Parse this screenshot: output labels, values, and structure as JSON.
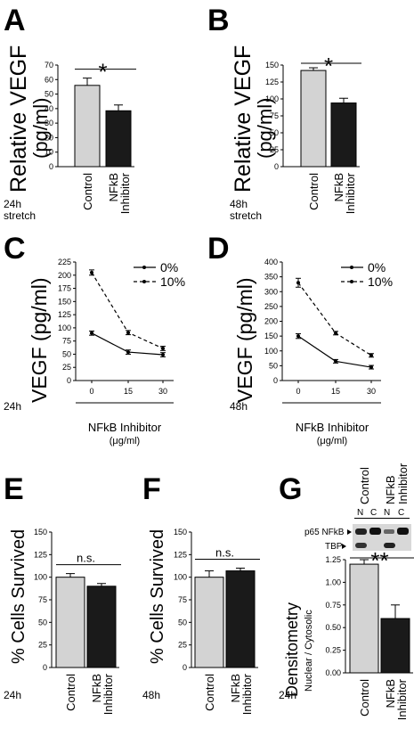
{
  "panels": {
    "A": {
      "letter": "A",
      "ylabel": "Relative VEGF",
      "ylabel2": "(pg/ml)",
      "note1": "24h",
      "note2": "stretch",
      "sig": "*"
    },
    "B": {
      "letter": "B",
      "ylabel": "Relative VEGF",
      "ylabel2": "(pg/ml)",
      "note1": "48h",
      "note2": "stretch",
      "sig": "*"
    },
    "C": {
      "letter": "C",
      "ylabel": "VEGF (pg/ml)",
      "note1": "24h",
      "xlabel": "NFkB Inhibitor",
      "xunit": "(μg/ml)"
    },
    "D": {
      "letter": "D",
      "ylabel": "VEGF (pg/ml)",
      "note1": "48h",
      "xlabel": "NFkB Inhibitor",
      "xunit": "(μg/ml)"
    },
    "E": {
      "letter": "E",
      "ylabel": "% Cells Survived",
      "note1": "24h",
      "sig": "n.s."
    },
    "F": {
      "letter": "F",
      "ylabel": "% Cells Survived",
      "note1": "48h",
      "sig": "n.s."
    },
    "G": {
      "letter": "G",
      "ylabel": "Densitometry",
      "ylabel_sub": "Nuclear / Cytosolic",
      "note1": "24h",
      "sig": "**",
      "blot_col1": "Control",
      "blot_col2a": "NFkB",
      "blot_col2b": "Inhibitor",
      "lane_n1": "N",
      "lane_c1": "C",
      "lane_n2": "N",
      "lane_c2": "C",
      "row1": "p65 NFkB",
      "row2": "TBP"
    }
  },
  "labels": {
    "control": "Control",
    "nfkb1": "NFkB",
    "nfkb2": "Inhibitor"
  },
  "colors": {
    "control": "#d3d3d3",
    "inhibitor": "#1a1a1a"
  },
  "chart_data": [
    {
      "id": "A",
      "type": "bar",
      "categories": [
        "Control",
        "NFkB Inhibitor"
      ],
      "values": [
        56,
        38.5
      ],
      "errors": [
        5,
        4
      ],
      "ylim": [
        0,
        70
      ],
      "yticks": [
        0,
        10,
        20,
        30,
        40,
        50,
        60,
        70
      ],
      "ylabel": "Relative VEGF (pg/ml)",
      "significance": "*"
    },
    {
      "id": "B",
      "type": "bar",
      "categories": [
        "Control",
        "NFkB Inhibitor"
      ],
      "values": [
        142,
        94
      ],
      "errors": [
        4,
        7
      ],
      "ylim": [
        0,
        150
      ],
      "yticks": [
        0,
        25,
        50,
        75,
        100,
        125,
        150
      ],
      "ylabel": "Relative VEGF (pg/ml)",
      "significance": "*"
    },
    {
      "id": "C",
      "type": "line",
      "x": [
        0,
        15,
        30
      ],
      "xticks": [
        "0",
        "15",
        "30"
      ],
      "ylim": [
        0,
        225
      ],
      "yticks": [
        0,
        25,
        50,
        75,
        100,
        125,
        150,
        175,
        200,
        225
      ],
      "ylabel": "VEGF (pg/ml)",
      "xlabel": "NFkB Inhibitor (μg/ml)",
      "series": [
        {
          "name": "0%",
          "style": "solid",
          "values": [
            90,
            54,
            49
          ],
          "errors": [
            4,
            4,
            4
          ]
        },
        {
          "name": "10%",
          "style": "dashed",
          "values": [
            205,
            91,
            61
          ],
          "errors": [
            5,
            4,
            4
          ]
        }
      ]
    },
    {
      "id": "D",
      "type": "line",
      "x": [
        0,
        15,
        30
      ],
      "xticks": [
        "0",
        "15",
        "30"
      ],
      "ylim": [
        0,
        400
      ],
      "yticks": [
        0,
        50,
        100,
        150,
        200,
        250,
        300,
        350,
        400
      ],
      "ylabel": "VEGF (pg/ml)",
      "xlabel": "NFkB Inhibitor (μg/ml)",
      "series": [
        {
          "name": "0%",
          "style": "solid",
          "values": [
            150,
            65,
            45
          ],
          "errors": [
            8,
            6,
            6
          ]
        },
        {
          "name": "10%",
          "style": "dashed",
          "values": [
            330,
            160,
            85
          ],
          "errors": [
            15,
            6,
            6
          ]
        }
      ]
    },
    {
      "id": "E",
      "type": "bar",
      "categories": [
        "Control",
        "NFkB Inhibitor"
      ],
      "values": [
        100,
        90
      ],
      "errors": [
        4,
        3
      ],
      "ylim": [
        0,
        150
      ],
      "yticks": [
        0,
        25,
        50,
        75,
        100,
        125,
        150
      ],
      "ylabel": "% Cells Survived",
      "significance": "n.s."
    },
    {
      "id": "F",
      "type": "bar",
      "categories": [
        "Control",
        "NFkB Inhibitor"
      ],
      "values": [
        100,
        107
      ],
      "errors": [
        7,
        3
      ],
      "ylim": [
        0,
        150
      ],
      "yticks": [
        0,
        25,
        50,
        75,
        100,
        125,
        150
      ],
      "ylabel": "% Cells Survived",
      "significance": "n.s."
    },
    {
      "id": "G",
      "type": "bar",
      "categories": [
        "Control",
        "NFkB Inhibitor"
      ],
      "values": [
        1.2,
        0.6
      ],
      "errors": [
        0.05,
        0.15
      ],
      "ylim": [
        0,
        1.25
      ],
      "yticks": [
        "0.00",
        "0.25",
        "0.50",
        "0.75",
        "1.00",
        "1.25"
      ],
      "ylabel": "Densitometry Nuclear / Cytosolic",
      "significance": "**"
    }
  ]
}
